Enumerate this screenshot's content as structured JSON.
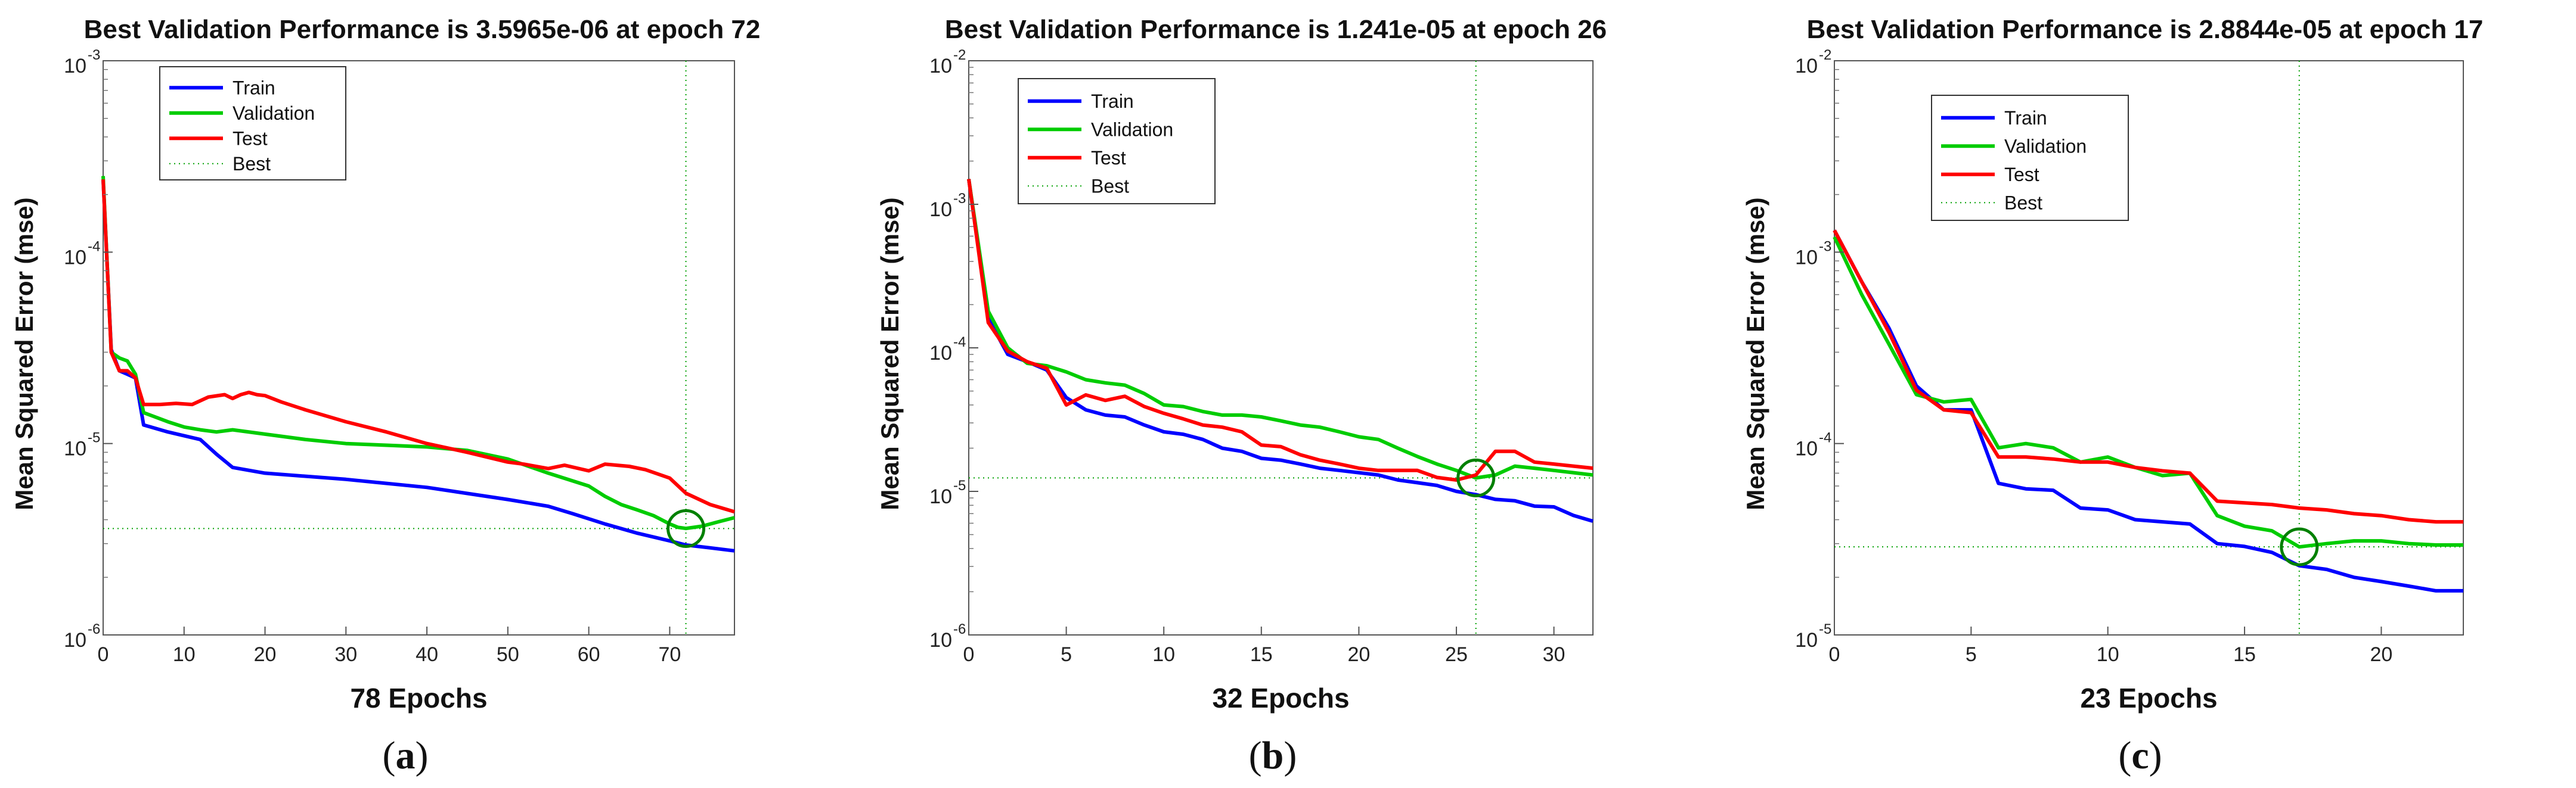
{
  "chart_data": [
    {
      "type": "line",
      "panel": "a",
      "caption": "a",
      "title": "Best Validation Performance is 3.5965e-06 at epoch 72",
      "xlabel": "78 Epochs",
      "ylabel": "Mean Squared Error  (mse)",
      "yscale": "log",
      "xlim": [
        0,
        78
      ],
      "ylim": [
        1e-06,
        0.001
      ],
      "xticks": [
        0,
        10,
        20,
        30,
        40,
        50,
        60,
        70
      ],
      "yticks": [
        {
          "exp": -6,
          "label": "10",
          "sup": "-6"
        },
        {
          "exp": -5,
          "label": "10",
          "sup": "-5"
        },
        {
          "exp": -4,
          "label": "10",
          "sup": "-4"
        },
        {
          "exp": -3,
          "label": "10",
          "sup": "-3"
        }
      ],
      "legend_position": "top-left",
      "best": {
        "epoch": 72,
        "value": 3.5965e-06,
        "legend": "Best"
      },
      "series": [
        {
          "name": "Train",
          "color": "#0000ff",
          "x": [
            0,
            1,
            2,
            3,
            4,
            5,
            8,
            12,
            14,
            16,
            20,
            30,
            40,
            50,
            55,
            58,
            62,
            66,
            70,
            72,
            75,
            78
          ],
          "y": [
            0.00024,
            3.1e-05,
            2.4e-05,
            2.3e-05,
            2.2e-05,
            1.25e-05,
            1.15e-05,
            1.05e-05,
            8.8e-06,
            7.5e-06,
            7e-06,
            6.5e-06,
            5.9e-06,
            5.1e-06,
            4.7e-06,
            4.3e-06,
            3.8e-06,
            3.4e-06,
            3.1e-06,
            2.95e-06,
            2.85e-06,
            2.75e-06
          ]
        },
        {
          "name": "Validation",
          "color": "#00cc00",
          "x": [
            0,
            1,
            2,
            3,
            4,
            5,
            8,
            10,
            12,
            14,
            16,
            20,
            25,
            30,
            35,
            40,
            45,
            50,
            55,
            60,
            62,
            64,
            66,
            68,
            70,
            71,
            72,
            74,
            76,
            78
          ],
          "y": [
            0.00025,
            3e-05,
            2.8e-05,
            2.7e-05,
            2.3e-05,
            1.45e-05,
            1.3e-05,
            1.22e-05,
            1.18e-05,
            1.15e-05,
            1.18e-05,
            1.12e-05,
            1.05e-05,
            1e-05,
            9.8e-06,
            9.6e-06,
            9.2e-06,
            8.3e-06,
            7e-06,
            6e-06,
            5.3e-06,
            4.8e-06,
            4.5e-06,
            4.2e-06,
            3.8e-06,
            3.65e-06,
            3.6e-06,
            3.7e-06,
            3.9e-06,
            4.1e-06
          ]
        },
        {
          "name": "Test",
          "color": "#ff0000",
          "x": [
            0,
            1,
            2,
            3,
            4,
            5,
            7,
            9,
            11,
            13,
            15,
            16,
            17,
            18,
            19,
            20,
            22,
            25,
            30,
            35,
            40,
            45,
            50,
            52,
            55,
            57,
            60,
            62,
            65,
            67,
            70,
            72,
            75,
            78
          ],
          "y": [
            0.00024,
            3e-05,
            2.4e-05,
            2.4e-05,
            2.2e-05,
            1.6e-05,
            1.6e-05,
            1.62e-05,
            1.6e-05,
            1.75e-05,
            1.8e-05,
            1.72e-05,
            1.8e-05,
            1.85e-05,
            1.8e-05,
            1.78e-05,
            1.65e-05,
            1.5e-05,
            1.3e-05,
            1.15e-05,
            1e-05,
            9e-06,
            8e-06,
            7.8e-06,
            7.4e-06,
            7.7e-06,
            7.2e-06,
            7.8e-06,
            7.6e-06,
            7.3e-06,
            6.6e-06,
            5.5e-06,
            4.8e-06,
            4.4e-06
          ]
        }
      ]
    },
    {
      "type": "line",
      "panel": "b",
      "caption": "b",
      "title": "Best Validation Performance is 1.241e-05 at epoch 26",
      "xlabel": "32 Epochs",
      "ylabel": "Mean Squared Error  (mse)",
      "yscale": "log",
      "xlim": [
        0,
        32
      ],
      "ylim": [
        1e-06,
        0.01
      ],
      "xticks": [
        0,
        5,
        10,
        15,
        20,
        25,
        30
      ],
      "yticks": [
        {
          "exp": -6,
          "label": "10",
          "sup": "-6"
        },
        {
          "exp": -5,
          "label": "10",
          "sup": "-5"
        },
        {
          "exp": -4,
          "label": "10",
          "sup": "-4"
        },
        {
          "exp": -3,
          "label": "10",
          "sup": "-3"
        },
        {
          "exp": -2,
          "label": "10",
          "sup": "-2"
        }
      ],
      "legend_position": "top-left",
      "best": {
        "epoch": 26,
        "value": 1.241e-05,
        "legend": "Best"
      },
      "series": [
        {
          "name": "Train",
          "color": "#0000ff",
          "x": [
            0,
            1,
            2,
            3,
            4,
            5,
            6,
            7,
            8,
            9,
            10,
            11,
            12,
            13,
            14,
            15,
            16,
            17,
            18,
            19,
            20,
            21,
            22,
            23,
            24,
            25,
            26,
            27,
            28,
            29,
            30,
            31,
            32
          ],
          "y": [
            0.0015,
            0.00016,
            9e-05,
            8e-05,
            7e-05,
            4.5e-05,
            3.7e-05,
            3.4e-05,
            3.3e-05,
            2.9e-05,
            2.6e-05,
            2.5e-05,
            2.3e-05,
            2e-05,
            1.9e-05,
            1.7e-05,
            1.65e-05,
            1.55e-05,
            1.45e-05,
            1.4e-05,
            1.35e-05,
            1.3e-05,
            1.2e-05,
            1.15e-05,
            1.1e-05,
            1e-05,
            9.5e-06,
            8.8e-06,
            8.6e-06,
            7.9e-06,
            7.8e-06,
            6.8e-06,
            6.2e-06
          ]
        },
        {
          "name": "Validation",
          "color": "#00cc00",
          "x": [
            0,
            1,
            2,
            3,
            4,
            5,
            6,
            7,
            8,
            9,
            10,
            11,
            12,
            13,
            14,
            15,
            16,
            17,
            18,
            19,
            20,
            21,
            22,
            23,
            24,
            25,
            26,
            27,
            28,
            29,
            30,
            31,
            32
          ],
          "y": [
            0.0015,
            0.00018,
            0.0001,
            7.8e-05,
            7.5e-05,
            6.8e-05,
            6e-05,
            5.7e-05,
            5.5e-05,
            4.8e-05,
            4e-05,
            3.9e-05,
            3.6e-05,
            3.4e-05,
            3.4e-05,
            3.3e-05,
            3.1e-05,
            2.9e-05,
            2.8e-05,
            2.6e-05,
            2.4e-05,
            2.3e-05,
            2e-05,
            1.75e-05,
            1.55e-05,
            1.4e-05,
            1.241e-05,
            1.3e-05,
            1.5e-05,
            1.45e-05,
            1.4e-05,
            1.35e-05,
            1.3e-05
          ]
        },
        {
          "name": "Test",
          "color": "#ff0000",
          "x": [
            0,
            1,
            2,
            3,
            4,
            5,
            6,
            7,
            8,
            9,
            10,
            11,
            12,
            13,
            14,
            15,
            16,
            17,
            18,
            19,
            20,
            21,
            22,
            23,
            24,
            25,
            26,
            27,
            28,
            29,
            30,
            31,
            32
          ],
          "y": [
            0.0015,
            0.00015,
            9.5e-05,
            8e-05,
            7.2e-05,
            4e-05,
            4.7e-05,
            4.3e-05,
            4.6e-05,
            3.9e-05,
            3.5e-05,
            3.2e-05,
            2.9e-05,
            2.8e-05,
            2.6e-05,
            2.1e-05,
            2.05e-05,
            1.8e-05,
            1.65e-05,
            1.55e-05,
            1.45e-05,
            1.4e-05,
            1.4e-05,
            1.4e-05,
            1.25e-05,
            1.2e-05,
            1.3e-05,
            1.9e-05,
            1.9e-05,
            1.6e-05,
            1.55e-05,
            1.5e-05,
            1.45e-05
          ]
        }
      ]
    },
    {
      "type": "line",
      "panel": "c",
      "caption": "c",
      "title": "Best Validation Performance is 2.8844e-05 at epoch 17",
      "xlabel": "23 Epochs",
      "ylabel": "Mean Squared Error  (mse)",
      "yscale": "log",
      "xlim": [
        0,
        23
      ],
      "ylim": [
        1e-05,
        0.01
      ],
      "xticks": [
        0,
        5,
        10,
        15,
        20
      ],
      "yticks": [
        {
          "exp": -5,
          "label": "10",
          "sup": "-5"
        },
        {
          "exp": -4,
          "label": "10",
          "sup": "-4"
        },
        {
          "exp": -3,
          "label": "10",
          "sup": "-3"
        },
        {
          "exp": -2,
          "label": "10",
          "sup": "-2"
        }
      ],
      "legend_position": "top-left",
      "best": {
        "epoch": 17,
        "value": 2.8844e-05,
        "legend": "Best"
      },
      "series": [
        {
          "name": "Train",
          "color": "#0000ff",
          "x": [
            0,
            1,
            2,
            3,
            4,
            5,
            6,
            7,
            8,
            9,
            10,
            11,
            12,
            13,
            14,
            15,
            16,
            17,
            18,
            19,
            20,
            21,
            22,
            23
          ],
          "y": [
            0.0013,
            0.0007,
            0.0004,
            0.0002,
            0.00015,
            0.00015,
            6.2e-05,
            5.8e-05,
            5.7e-05,
            4.6e-05,
            4.5e-05,
            4e-05,
            3.9e-05,
            3.8e-05,
            3e-05,
            2.9e-05,
            2.7e-05,
            2.3e-05,
            2.2e-05,
            2e-05,
            1.9e-05,
            1.8e-05,
            1.7e-05,
            1.7e-05
          ]
        },
        {
          "name": "Validation",
          "color": "#00cc00",
          "x": [
            0,
            1,
            2,
            3,
            4,
            5,
            6,
            7,
            8,
            9,
            10,
            11,
            12,
            13,
            14,
            15,
            16,
            17,
            18,
            19,
            20,
            21,
            22,
            23
          ],
          "y": [
            0.0012,
            0.0006,
            0.00033,
            0.00018,
            0.000165,
            0.00017,
            9.5e-05,
            0.0001,
            9.5e-05,
            8e-05,
            8.5e-05,
            7.5e-05,
            6.8e-05,
            7e-05,
            4.2e-05,
            3.7e-05,
            3.5e-05,
            2.8844e-05,
            3e-05,
            3.1e-05,
            3.1e-05,
            3e-05,
            2.95e-05,
            2.95e-05
          ]
        },
        {
          "name": "Test",
          "color": "#ff0000",
          "x": [
            0,
            1,
            2,
            3,
            4,
            5,
            6,
            7,
            8,
            9,
            10,
            11,
            12,
            13,
            14,
            15,
            16,
            17,
            18,
            19,
            20,
            21,
            22,
            23
          ],
          "y": [
            0.0013,
            0.0007,
            0.00038,
            0.00019,
            0.00015,
            0.000145,
            8.5e-05,
            8.5e-05,
            8.3e-05,
            8e-05,
            8e-05,
            7.5e-05,
            7.2e-05,
            7e-05,
            5e-05,
            4.9e-05,
            4.8e-05,
            4.6e-05,
            4.5e-05,
            4.3e-05,
            4.2e-05,
            4e-05,
            3.9e-05,
            3.9e-05
          ]
        }
      ]
    }
  ]
}
